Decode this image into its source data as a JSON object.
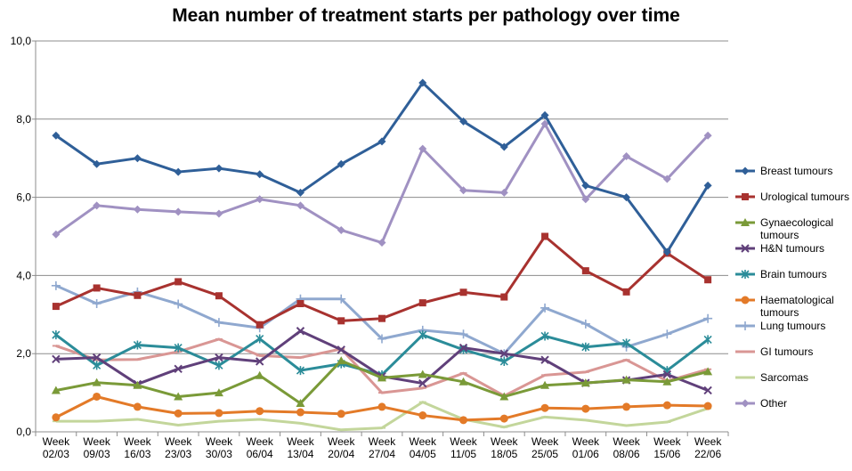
{
  "chart_data": {
    "type": "line",
    "title": "Mean number of treatment starts per pathology over time",
    "xlabel": "",
    "ylabel": "",
    "ylim": [
      0,
      10
    ],
    "yticks": [
      0,
      2,
      4,
      6,
      8,
      10
    ],
    "ytick_labels": [
      "0,0",
      "2,0",
      "4,0",
      "6,0",
      "8,0",
      "10,0"
    ],
    "grid": true,
    "legend_position": "right",
    "categories": [
      [
        "Week",
        "02/03"
      ],
      [
        "Week",
        "09/03"
      ],
      [
        "Week",
        "16/03"
      ],
      [
        "Week",
        "23/03"
      ],
      [
        "Week",
        "30/03"
      ],
      [
        "Week",
        "06/04"
      ],
      [
        "Week",
        "13/04"
      ],
      [
        "Week",
        "20/04"
      ],
      [
        "Week",
        "27/04"
      ],
      [
        "Week",
        "04/05"
      ],
      [
        "Week",
        "11/05"
      ],
      [
        "Week",
        "18/05"
      ],
      [
        "Week",
        "25/05"
      ],
      [
        "Week",
        "01/06"
      ],
      [
        "Week",
        "08/06"
      ],
      [
        "Week",
        "15/06"
      ],
      [
        "Week",
        "22/06"
      ]
    ],
    "series": [
      {
        "name": "Breast tumours",
        "legend_lines": [
          "Breast tumours"
        ],
        "color": "#2f5f98",
        "marker": "diamond",
        "values": [
          7.58,
          6.85,
          7.0,
          6.65,
          6.74,
          6.59,
          6.12,
          6.85,
          7.43,
          8.93,
          7.94,
          7.29,
          8.1,
          6.3,
          6.0,
          4.6,
          6.3
        ]
      },
      {
        "name": "Urological tumours",
        "legend_lines": [
          "Urological tumours"
        ],
        "color": "#a8322f",
        "marker": "square",
        "values": [
          3.21,
          3.68,
          3.49,
          3.84,
          3.48,
          2.74,
          3.28,
          2.84,
          2.9,
          3.3,
          3.57,
          3.45,
          5.0,
          4.12,
          3.58,
          4.57,
          3.89
        ]
      },
      {
        "name": "Gynaecological tumours",
        "legend_lines": [
          "Gynaecological",
          "tumours"
        ],
        "color": "#7a9a38",
        "marker": "triangle",
        "values": [
          1.06,
          1.26,
          1.19,
          0.9,
          1.0,
          1.44,
          0.73,
          1.82,
          1.38,
          1.47,
          1.28,
          0.9,
          1.19,
          1.25,
          1.33,
          1.28,
          1.54
        ]
      },
      {
        "name": "H&N tumours",
        "legend_lines": [
          "H&N tumours"
        ],
        "color": "#60407a",
        "marker": "x",
        "values": [
          1.86,
          1.9,
          1.22,
          1.61,
          1.9,
          1.8,
          2.58,
          2.1,
          1.42,
          1.24,
          2.15,
          2.0,
          1.84,
          1.25,
          1.32,
          1.47,
          1.06
        ]
      },
      {
        "name": "Brain tumours",
        "legend_lines": [
          "Brain tumours"
        ],
        "color": "#2b8c99",
        "marker": "star",
        "values": [
          2.48,
          1.7,
          2.22,
          2.15,
          1.7,
          2.38,
          1.57,
          1.74,
          1.46,
          2.48,
          2.1,
          1.8,
          2.45,
          2.17,
          2.27,
          1.57,
          2.36
        ]
      },
      {
        "name": "Haematological tumours",
        "legend_lines": [
          "Haematological",
          "tumours"
        ],
        "color": "#e37a28",
        "marker": "circle",
        "values": [
          0.37,
          0.9,
          0.64,
          0.47,
          0.48,
          0.53,
          0.5,
          0.46,
          0.64,
          0.42,
          0.3,
          0.34,
          0.61,
          0.59,
          0.64,
          0.68,
          0.66
        ]
      },
      {
        "name": "Lung tumours",
        "legend_lines": [
          "Lung tumours"
        ],
        "color": "#8fa8cf",
        "marker": "plus",
        "values": [
          3.74,
          3.28,
          3.58,
          3.27,
          2.8,
          2.66,
          3.4,
          3.4,
          2.38,
          2.6,
          2.5,
          2.0,
          3.17,
          2.76,
          2.17,
          2.5,
          2.9
        ]
      },
      {
        "name": "GI tumours",
        "legend_lines": [
          "GI tumours"
        ],
        "color": "#d99694",
        "marker": "dash",
        "values": [
          2.2,
          1.84,
          1.85,
          2.05,
          2.37,
          1.95,
          1.9,
          2.12,
          1.0,
          1.12,
          1.5,
          0.92,
          1.45,
          1.53,
          1.84,
          1.3,
          1.6
        ]
      },
      {
        "name": "Sarcomas",
        "legend_lines": [
          "Sarcomas"
        ],
        "color": "#c3d69b",
        "marker": "dash",
        "values": [
          0.27,
          0.27,
          0.32,
          0.17,
          0.27,
          0.32,
          0.22,
          0.05,
          0.1,
          0.76,
          0.32,
          0.12,
          0.38,
          0.3,
          0.16,
          0.25,
          0.6
        ]
      },
      {
        "name": "Other",
        "legend_lines": [
          "Other"
        ],
        "color": "#a091c2",
        "marker": "diamond",
        "values": [
          5.05,
          5.79,
          5.69,
          5.63,
          5.58,
          5.95,
          5.79,
          5.16,
          4.84,
          7.24,
          6.18,
          6.12,
          7.88,
          5.95,
          7.05,
          6.47,
          7.58
        ]
      }
    ]
  }
}
